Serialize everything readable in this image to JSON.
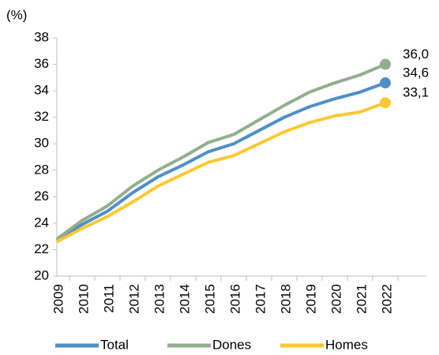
{
  "chart_data": {
    "type": "line",
    "y_label": "(%)",
    "categories": [
      "2009",
      "2010",
      "2011",
      "2012",
      "2013",
      "2014",
      "2015",
      "2016",
      "2017",
      "2018",
      "2019",
      "2020",
      "2021",
      "2022"
    ],
    "series": [
      {
        "name": "Total",
        "color": "#4f8fc6",
        "values": [
          22.7,
          23.9,
          24.9,
          26.3,
          27.5,
          28.4,
          29.4,
          30.0,
          31.0,
          32.0,
          32.8,
          33.4,
          33.9,
          34.6
        ],
        "value_labels": [
          null,
          null,
          null,
          null,
          null,
          null,
          null,
          null,
          null,
          null,
          null,
          null,
          null,
          "34,6"
        ]
      },
      {
        "name": "Dones",
        "color": "#93ae8e",
        "values": [
          22.8,
          24.2,
          25.3,
          26.8,
          28.0,
          29.0,
          30.1,
          30.7,
          31.8,
          32.9,
          33.9,
          34.6,
          35.2,
          36.0
        ],
        "value_labels": [
          null,
          null,
          null,
          null,
          null,
          null,
          null,
          null,
          null,
          null,
          null,
          null,
          null,
          "36,0"
        ]
      },
      {
        "name": "Homes",
        "color": "#fdc832",
        "values": [
          22.6,
          23.6,
          24.5,
          25.6,
          26.8,
          27.7,
          28.6,
          29.1,
          30.0,
          30.9,
          31.6,
          32.1,
          32.4,
          33.1
        ],
        "value_labels": [
          null,
          null,
          null,
          null,
          null,
          null,
          null,
          null,
          null,
          null,
          null,
          null,
          null,
          "33,1"
        ]
      }
    ],
    "ylim": [
      20,
      38
    ],
    "yticks": [
      20,
      22,
      24,
      26,
      28,
      30,
      32,
      34,
      36,
      38
    ],
    "grid": false,
    "legend": "bottom"
  }
}
